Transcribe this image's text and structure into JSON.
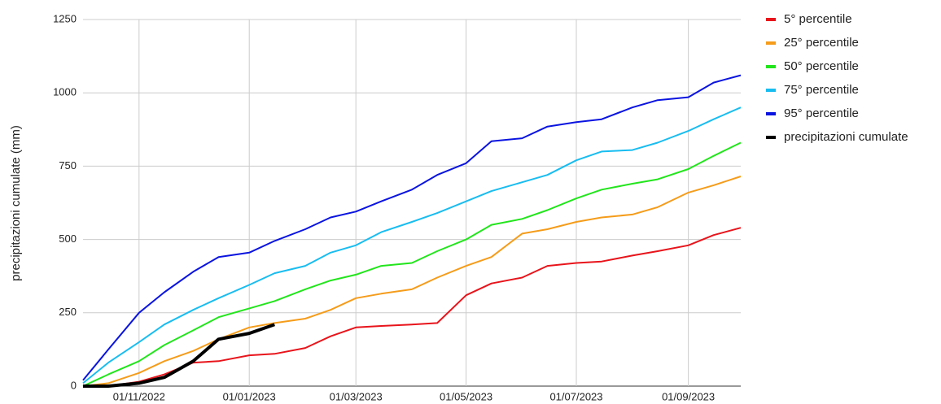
{
  "chart_data": {
    "type": "line",
    "y_label": "precipitazioni cumulate (mm)",
    "x": [
      "01/10/2022",
      "15/10/2022",
      "01/11/2022",
      "15/11/2022",
      "01/12/2022",
      "15/12/2022",
      "01/01/2023",
      "15/01/2023",
      "01/02/2023",
      "15/02/2023",
      "01/03/2023",
      "15/03/2023",
      "01/04/2023",
      "15/04/2023",
      "01/05/2023",
      "15/05/2023",
      "01/06/2023",
      "15/06/2023",
      "01/07/2023",
      "15/07/2023",
      "01/08/2023",
      "15/08/2023",
      "01/09/2023",
      "15/09/2023",
      "30/09/2023"
    ],
    "series": [
      {
        "name": "5° percentile",
        "color": "#e8141b",
        "width": 2,
        "values": [
          0,
          0,
          15,
          40,
          80,
          85,
          105,
          110,
          130,
          170,
          200,
          205,
          210,
          215,
          310,
          350,
          370,
          410,
          420,
          425,
          445,
          460,
          480,
          515,
          540
        ]
      },
      {
        "name": "25° percentile",
        "color": "#f59c1a",
        "width": 2,
        "values": [
          0,
          10,
          45,
          85,
          120,
          160,
          200,
          215,
          230,
          260,
          300,
          315,
          330,
          370,
          410,
          440,
          520,
          535,
          560,
          575,
          585,
          610,
          660,
          685,
          715
        ]
      },
      {
        "name": "50° percentile",
        "color": "#22e51c",
        "width": 2,
        "values": [
          0,
          40,
          85,
          140,
          190,
          235,
          265,
          290,
          330,
          360,
          380,
          410,
          420,
          460,
          500,
          550,
          570,
          600,
          640,
          670,
          690,
          705,
          740,
          785,
          830
        ]
      },
      {
        "name": "75° percentile",
        "color": "#18bdf0",
        "width": 2,
        "values": [
          10,
          80,
          150,
          210,
          260,
          300,
          345,
          385,
          410,
          455,
          480,
          525,
          560,
          590,
          630,
          665,
          695,
          720,
          770,
          800,
          805,
          830,
          870,
          910,
          950
        ]
      },
      {
        "name": "95° percentile",
        "color": "#0a14e0",
        "width": 2,
        "values": [
          20,
          125,
          250,
          320,
          390,
          440,
          455,
          495,
          535,
          575,
          595,
          630,
          670,
          720,
          760,
          835,
          845,
          885,
          900,
          910,
          950,
          975,
          985,
          1035,
          1060
        ]
      },
      {
        "name": "precipitazioni cumulate",
        "color": "#000000",
        "width": 4,
        "values": [
          0,
          0,
          10,
          30,
          85,
          160,
          180,
          210,
          null,
          null,
          null,
          null,
          null,
          null,
          null,
          null,
          null,
          null,
          null,
          null,
          null,
          null,
          null,
          null,
          null
        ]
      }
    ],
    "xlim": [
      "01/10/2022",
      "30/09/2023"
    ],
    "xticks": [
      "01/11/2022",
      "01/01/2023",
      "01/03/2023",
      "01/05/2023",
      "01/07/2023",
      "01/09/2023"
    ],
    "ylim": [
      0,
      1250
    ],
    "yticks": [
      0,
      250,
      500,
      750,
      1000,
      1250
    ],
    "grid": true,
    "legend": "right"
  }
}
